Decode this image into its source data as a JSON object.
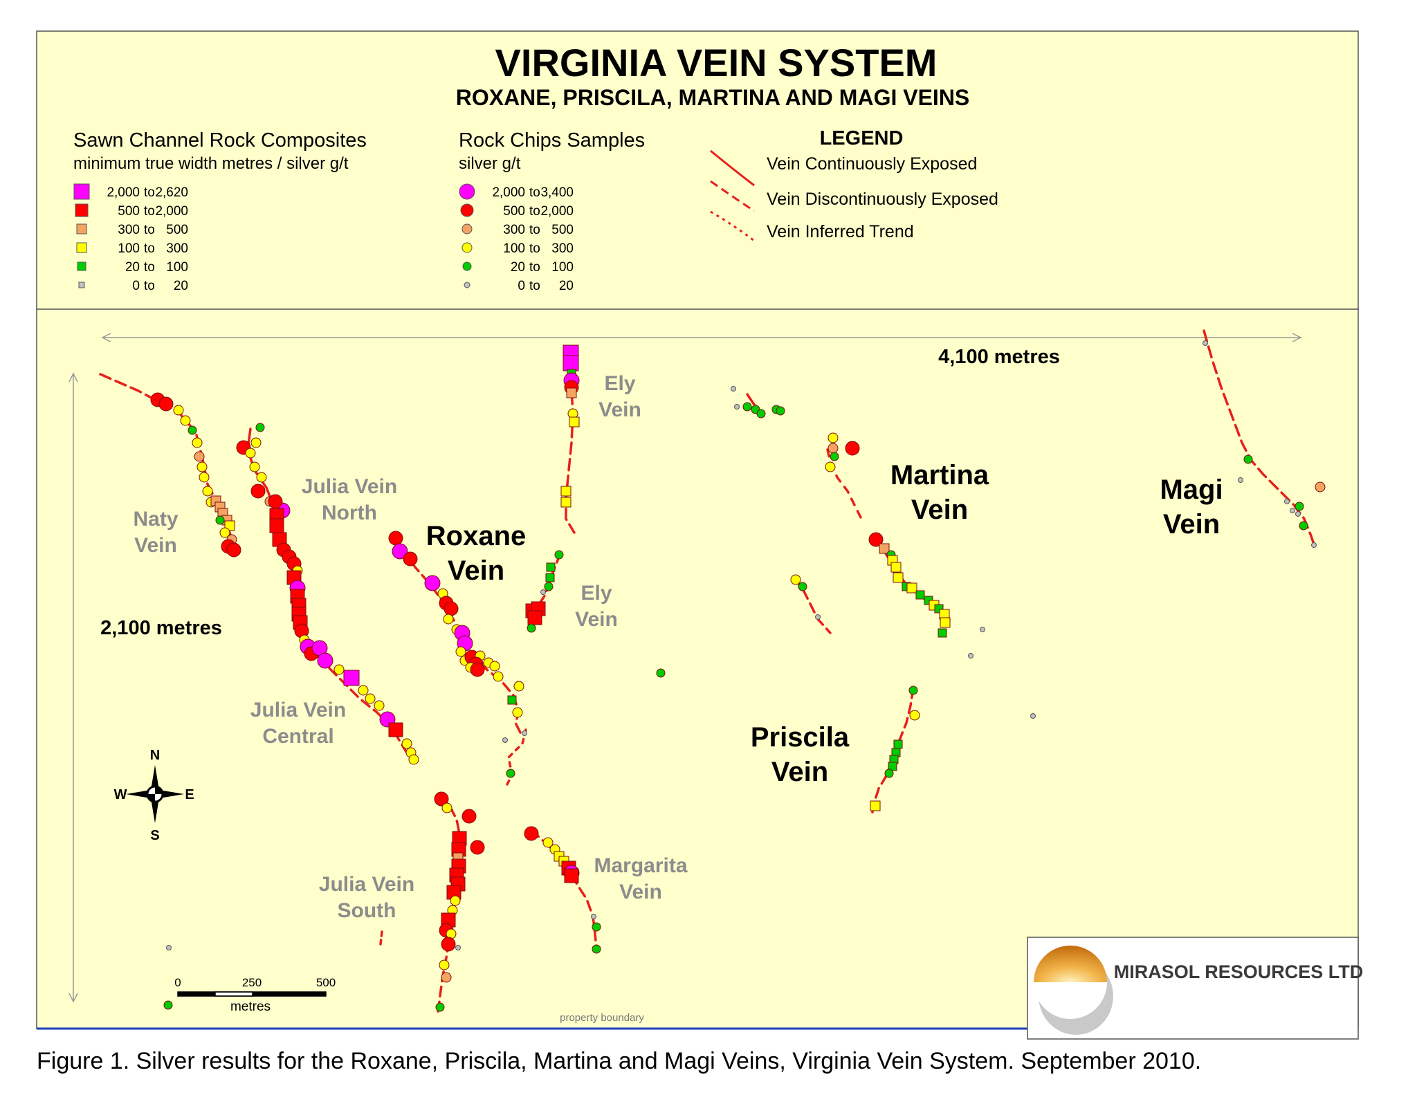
{
  "title": "VIRGINIA VEIN SYSTEM",
  "subtitle": "ROXANE, PRISCILA, MARTINA AND MAGI VEINS",
  "colors": {
    "background": "#FFFFCC",
    "vein": "#E8201C",
    "high_grade": "#FF00FF",
    "very_high": "#FF0000",
    "mid_grade": "#F4A460",
    "low_grade": "#FFFF00",
    "trace_grade": "#00CC00",
    "nil_grade": "#C0C0C0",
    "property_boundary": "#1F3FBF"
  },
  "legend_channel": {
    "title": "Sawn Channel Rock Composites",
    "subtitle": "minimum true width metres / silver g/t",
    "items": [
      {
        "label": "2,000 to 2,620",
        "from": "2,000",
        "to": "2,620",
        "color": "#FF00FF",
        "shape": "square"
      },
      {
        "label": "500 to 2,000",
        "from": "500",
        "to": "2,000",
        "color": "#FF0000",
        "shape": "square"
      },
      {
        "label": "300 to 500",
        "from": "300",
        "to": "500",
        "color": "#F4A460",
        "shape": "square"
      },
      {
        "label": "100 to 300",
        "from": "100",
        "to": "300",
        "color": "#FFFF00",
        "shape": "square"
      },
      {
        "label": "20 to 100",
        "from": "20",
        "to": "100",
        "color": "#00CC00",
        "shape": "square"
      },
      {
        "label": "0 to 20",
        "from": "0",
        "to": "20",
        "color": "#C0C0C0",
        "shape": "square"
      }
    ]
  },
  "legend_chips": {
    "title": "Rock Chips Samples",
    "subtitle": "silver g/t",
    "items": [
      {
        "label": "2,000 to 3,400",
        "from": "2,000",
        "to": "3,400",
        "color": "#FF00FF",
        "shape": "circle"
      },
      {
        "label": "500 to 2,000",
        "from": "500",
        "to": "2,000",
        "color": "#FF0000",
        "shape": "circle"
      },
      {
        "label": "300 to 500",
        "from": "300",
        "to": "500",
        "color": "#F4A460",
        "shape": "circle"
      },
      {
        "label": "100 to 300",
        "from": "100",
        "to": "300",
        "color": "#FFFF00",
        "shape": "circle"
      },
      {
        "label": "20 to 100",
        "from": "20",
        "to": "100",
        "color": "#00CC00",
        "shape": "circle"
      },
      {
        "label": "0 to 20",
        "from": "0",
        "to": "20",
        "color": "#C0C0C0",
        "shape": "circle"
      }
    ]
  },
  "legend_lines": {
    "title": "LEGEND",
    "items": [
      {
        "label": "Vein Continuously Exposed",
        "style": "solid"
      },
      {
        "label": "Vein Discontinuously Exposed",
        "style": "dashed"
      },
      {
        "label": "Vein Inferred Trend",
        "style": "dotted"
      }
    ]
  },
  "dimensions": {
    "width_label": "4,100 metres",
    "height_label": "2,100 metres"
  },
  "vein_labels": {
    "naty": [
      "Naty",
      "Vein"
    ],
    "julia_north": [
      "Julia Vein",
      "North"
    ],
    "roxane": [
      "Roxane",
      "Vein"
    ],
    "ely_top": [
      "Ely",
      "Vein"
    ],
    "ely_mid": [
      "Ely",
      "Vein"
    ],
    "martina": [
      "Martina",
      "Vein"
    ],
    "magi": [
      "Magi",
      "Vein"
    ],
    "julia_central": [
      "Julia Vein",
      "Central"
    ],
    "priscila": [
      "Priscila",
      "Vein"
    ],
    "margarita": [
      "Margarita",
      "Vein"
    ],
    "julia_south": [
      "Julia Vein",
      "South"
    ]
  },
  "compass": {
    "n": "N",
    "s": "S",
    "e": "E",
    "w": "W"
  },
  "scale_bar": {
    "ticks": [
      "0",
      "250",
      "500"
    ],
    "unit": "metres"
  },
  "property_boundary_label": "property boundary",
  "company": "MIRASOL RESOURCES LTD",
  "caption": "Figure 1.  Silver results for the Roxane, Priscila, Martina and Magi Veins, Virginia Vein System. September 2010."
}
